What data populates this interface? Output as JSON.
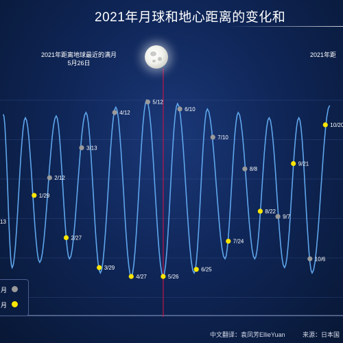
{
  "title": "2021年月球和地心距离的变化和",
  "annotations": {
    "nearest_full_moon_label": "2021年距离地球最近的满月",
    "nearest_full_moon_date": "5月26日",
    "right_label_partial": "2021年距"
  },
  "credit": {
    "translator": "中文翻译：袁凤芳EllieYuan",
    "source": "来源：日本国"
  },
  "legend": {
    "items": [
      {
        "label": "月",
        "color": "#9a9a9a"
      },
      {
        "label": "月",
        "color": "#ffe600"
      }
    ]
  },
  "colors": {
    "background": "#0f2658",
    "curve": "#5fa6ec",
    "grid": "#3d5793",
    "marker_line": "#c0174a",
    "new_moon": "#9a9a9a",
    "full_moon": "#ffe600"
  },
  "chart_data": {
    "type": "line",
    "title": "2021年月球和地心距离的变化和",
    "xlabel": "",
    "ylabel": "",
    "grid": true,
    "legend_placement": "bottom-left",
    "vertical_marker": "5/26",
    "series": [
      {
        "name": "",
        "description_points": "curve peaks and troughs (x in month-day order)",
        "points": [
          {
            "x": "01-01",
            "level": 0.92
          },
          {
            "x": "01-09",
            "level": 0.05
          },
          {
            "x": "01-21",
            "level": 0.9
          },
          {
            "x": "02-03",
            "level": 0.08
          },
          {
            "x": "02-18",
            "level": 0.91
          },
          {
            "x": "03-02",
            "level": 0.1
          },
          {
            "x": "03-17",
            "level": 0.93
          },
          {
            "x": "03-30",
            "level": 0.02
          },
          {
            "x": "04-13",
            "level": 0.96
          },
          {
            "x": "04-27",
            "level": 0.0
          },
          {
            "x": "05-11",
            "level": 1.0
          },
          {
            "x": "05-26",
            "level": 0.0
          },
          {
            "x": "06-08",
            "level": 0.98
          },
          {
            "x": "06-23",
            "level": 0.02
          },
          {
            "x": "07-05",
            "level": 0.95
          },
          {
            "x": "07-21",
            "level": 0.1
          },
          {
            "x": "08-02",
            "level": 0.93
          },
          {
            "x": "08-17",
            "level": 0.1
          },
          {
            "x": "08-30",
            "level": 0.9
          },
          {
            "x": "09-13",
            "level": 0.05
          },
          {
            "x": "09-26",
            "level": 0.9
          },
          {
            "x": "10-08",
            "level": 0.02
          },
          {
            "x": "10-24",
            "level": 0.97
          }
        ]
      }
    ],
    "new_moons": [
      {
        "label": "2/12",
        "x": "02-12",
        "level": 0.56
      },
      {
        "label": "3/13",
        "x": "03-13",
        "level": 0.73
      },
      {
        "label": "4/12",
        "x": "04-12",
        "level": 0.93
      },
      {
        "label": "5/12",
        "x": "05-12",
        "level": 0.99
      },
      {
        "label": "6/10",
        "x": "06-10",
        "level": 0.95
      },
      {
        "label": "7/10",
        "x": "07-10",
        "level": 0.79
      },
      {
        "label": "8/8",
        "x": "08-08",
        "level": 0.61
      },
      {
        "label": "9/7",
        "x": "09-07",
        "level": 0.34
      },
      {
        "label": "10/6",
        "x": "10-06",
        "level": 0.1
      }
    ],
    "full_moons": [
      {
        "label": "1/29",
        "x": "01-29",
        "level": 0.46
      },
      {
        "label": "2/27",
        "x": "02-27",
        "level": 0.22
      },
      {
        "label": "3/29",
        "x": "03-29",
        "level": 0.05
      },
      {
        "label": "4/27",
        "x": "04-27",
        "level": 0.0
      },
      {
        "label": "5/26",
        "x": "05-26",
        "level": 0.0
      },
      {
        "label": "6/25",
        "x": "06-25",
        "level": 0.04
      },
      {
        "label": "7/24",
        "x": "07-24",
        "level": 0.2
      },
      {
        "label": "8/22",
        "x": "08-22",
        "level": 0.37
      },
      {
        "label": "9/21",
        "x": "09-21",
        "level": 0.64
      },
      {
        "label": "10/20",
        "x": "10-20",
        "level": 0.86
      }
    ],
    "partial_labels": [
      {
        "label": "13"
      }
    ]
  }
}
